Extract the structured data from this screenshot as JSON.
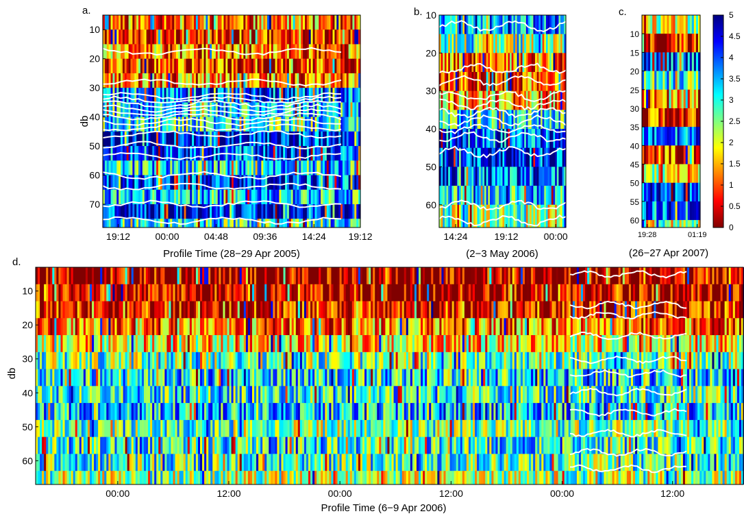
{
  "chart_data": [
    {
      "type": "heatmap",
      "panel_label": "a.",
      "xlabel": "Profile Time (28−29 Apr 2005)",
      "ylabel": "db",
      "x_ticks": [
        "19:12",
        "00:00",
        "04:48",
        "09:36",
        "14:24",
        "19:12"
      ],
      "y_ticks": [
        10,
        20,
        30,
        40,
        50,
        60,
        70
      ],
      "ylim": [
        5,
        78
      ],
      "contours": "white lines",
      "rows": [
        {
          "band": [
            5,
            10
          ],
          "level": 1.2
        },
        {
          "band": [
            10,
            15
          ],
          "level": 0.6
        },
        {
          "band": [
            15,
            20
          ],
          "level": 1.1
        },
        {
          "band": [
            20,
            25
          ],
          "level": 0.8
        },
        {
          "band": [
            25,
            30
          ],
          "level": 1.3
        },
        {
          "band": [
            30,
            35
          ],
          "level": 4.0
        },
        {
          "band": [
            35,
            40
          ],
          "level": 3.4
        },
        {
          "band": [
            40,
            45
          ],
          "level": 3.0
        },
        {
          "band": [
            45,
            50
          ],
          "level": 4.3
        },
        {
          "band": [
            50,
            55
          ],
          "level": 4.0
        },
        {
          "band": [
            55,
            60
          ],
          "level": 3.2
        },
        {
          "band": [
            60,
            65
          ],
          "level": 4.2
        },
        {
          "band": [
            65,
            70
          ],
          "level": 3.3
        },
        {
          "band": [
            70,
            75
          ],
          "level": 4.4
        },
        {
          "band": [
            75,
            78
          ],
          "level": 3.0
        }
      ]
    },
    {
      "type": "heatmap",
      "panel_label": "b.",
      "xlabel": "(2−3 May 2006)",
      "ylabel": "",
      "x_ticks": [
        "14:24",
        "19:12",
        "00:00"
      ],
      "y_ticks": [
        10,
        20,
        30,
        40,
        50,
        60
      ],
      "ylim": [
        10,
        66
      ],
      "contours": "white lines",
      "rows": [
        {
          "band": [
            10,
            15
          ],
          "level": 3.8
        },
        {
          "band": [
            15,
            20
          ],
          "level": 2.6
        },
        {
          "band": [
            20,
            25
          ],
          "level": 1.2
        },
        {
          "band": [
            25,
            30
          ],
          "level": 0.8
        },
        {
          "band": [
            30,
            35
          ],
          "level": 1.4
        },
        {
          "band": [
            35,
            40
          ],
          "level": 3.2
        },
        {
          "band": [
            40,
            45
          ],
          "level": 3.9
        },
        {
          "band": [
            45,
            50
          ],
          "level": 4.3
        },
        {
          "band": [
            50,
            55
          ],
          "level": 4.0
        },
        {
          "band": [
            55,
            60
          ],
          "level": 3.4
        },
        {
          "band": [
            60,
            66
          ],
          "level": 2.4
        }
      ]
    },
    {
      "type": "heatmap",
      "panel_label": "c.",
      "xlabel": "(26−27 Apr 2007)",
      "ylabel": "",
      "x_ticks": [
        "19:28",
        "01:19"
      ],
      "y_ticks": [
        10,
        15,
        20,
        25,
        30,
        35,
        40,
        45,
        50,
        55,
        60
      ],
      "ylim": [
        5,
        62
      ],
      "rows": [
        {
          "band": [
            5,
            10
          ],
          "level": 2.2
        },
        {
          "band": [
            10,
            15
          ],
          "level": 0.6
        },
        {
          "band": [
            15,
            20
          ],
          "level": 4.0
        },
        {
          "band": [
            20,
            25
          ],
          "level": 2.8
        },
        {
          "band": [
            25,
            30
          ],
          "level": 1.2
        },
        {
          "band": [
            30,
            35
          ],
          "level": 0.7
        },
        {
          "band": [
            35,
            40
          ],
          "level": 3.6
        },
        {
          "band": [
            40,
            45
          ],
          "level": 0.8
        },
        {
          "band": [
            45,
            50
          ],
          "level": 2.2
        },
        {
          "band": [
            50,
            55
          ],
          "level": 4.4
        },
        {
          "band": [
            55,
            60
          ],
          "level": 3.8
        },
        {
          "band": [
            60,
            62
          ],
          "level": 2.0
        }
      ]
    },
    {
      "type": "heatmap",
      "panel_label": "d.",
      "xlabel": "Profile Time (6−9 Apr 2006)",
      "ylabel": "db",
      "x_ticks": [
        "00:00",
        "12:00",
        "00:00",
        "12:00",
        "00:00",
        "12:00"
      ],
      "y_ticks": [
        10,
        20,
        30,
        40,
        50,
        60
      ],
      "ylim": [
        3,
        67
      ],
      "contours": "white lines (last day only)",
      "rows": [
        {
          "band": [
            3,
            8
          ],
          "level": 0.1
        },
        {
          "band": [
            8,
            13
          ],
          "level": 0.2
        },
        {
          "band": [
            13,
            18
          ],
          "level": 0.5
        },
        {
          "band": [
            18,
            23
          ],
          "level": 1.2
        },
        {
          "band": [
            23,
            28
          ],
          "level": 1.8
        },
        {
          "band": [
            28,
            33
          ],
          "level": 2.6
        },
        {
          "band": [
            33,
            38
          ],
          "level": 3.2
        },
        {
          "band": [
            38,
            43
          ],
          "level": 3.0
        },
        {
          "band": [
            43,
            48
          ],
          "level": 3.4
        },
        {
          "band": [
            48,
            53
          ],
          "level": 2.6
        },
        {
          "band": [
            53,
            58
          ],
          "level": 3.0
        },
        {
          "band": [
            58,
            63
          ],
          "level": 2.8
        },
        {
          "band": [
            63,
            67
          ],
          "level": 2.4
        }
      ]
    }
  ],
  "colorbar": {
    "ticks": [
      "5",
      "4.5",
      "4",
      "3.5",
      "3",
      "2.5",
      "2",
      "1.5",
      "1",
      "0.5",
      "0"
    ],
    "range": [
      0,
      5
    ],
    "colormap": "jet",
    "colormap_stops": [
      "#800000",
      "#ff0000",
      "#ff8000",
      "#ffff00",
      "#80ff80",
      "#00ffff",
      "#0080ff",
      "#0000ff",
      "#000080"
    ]
  }
}
